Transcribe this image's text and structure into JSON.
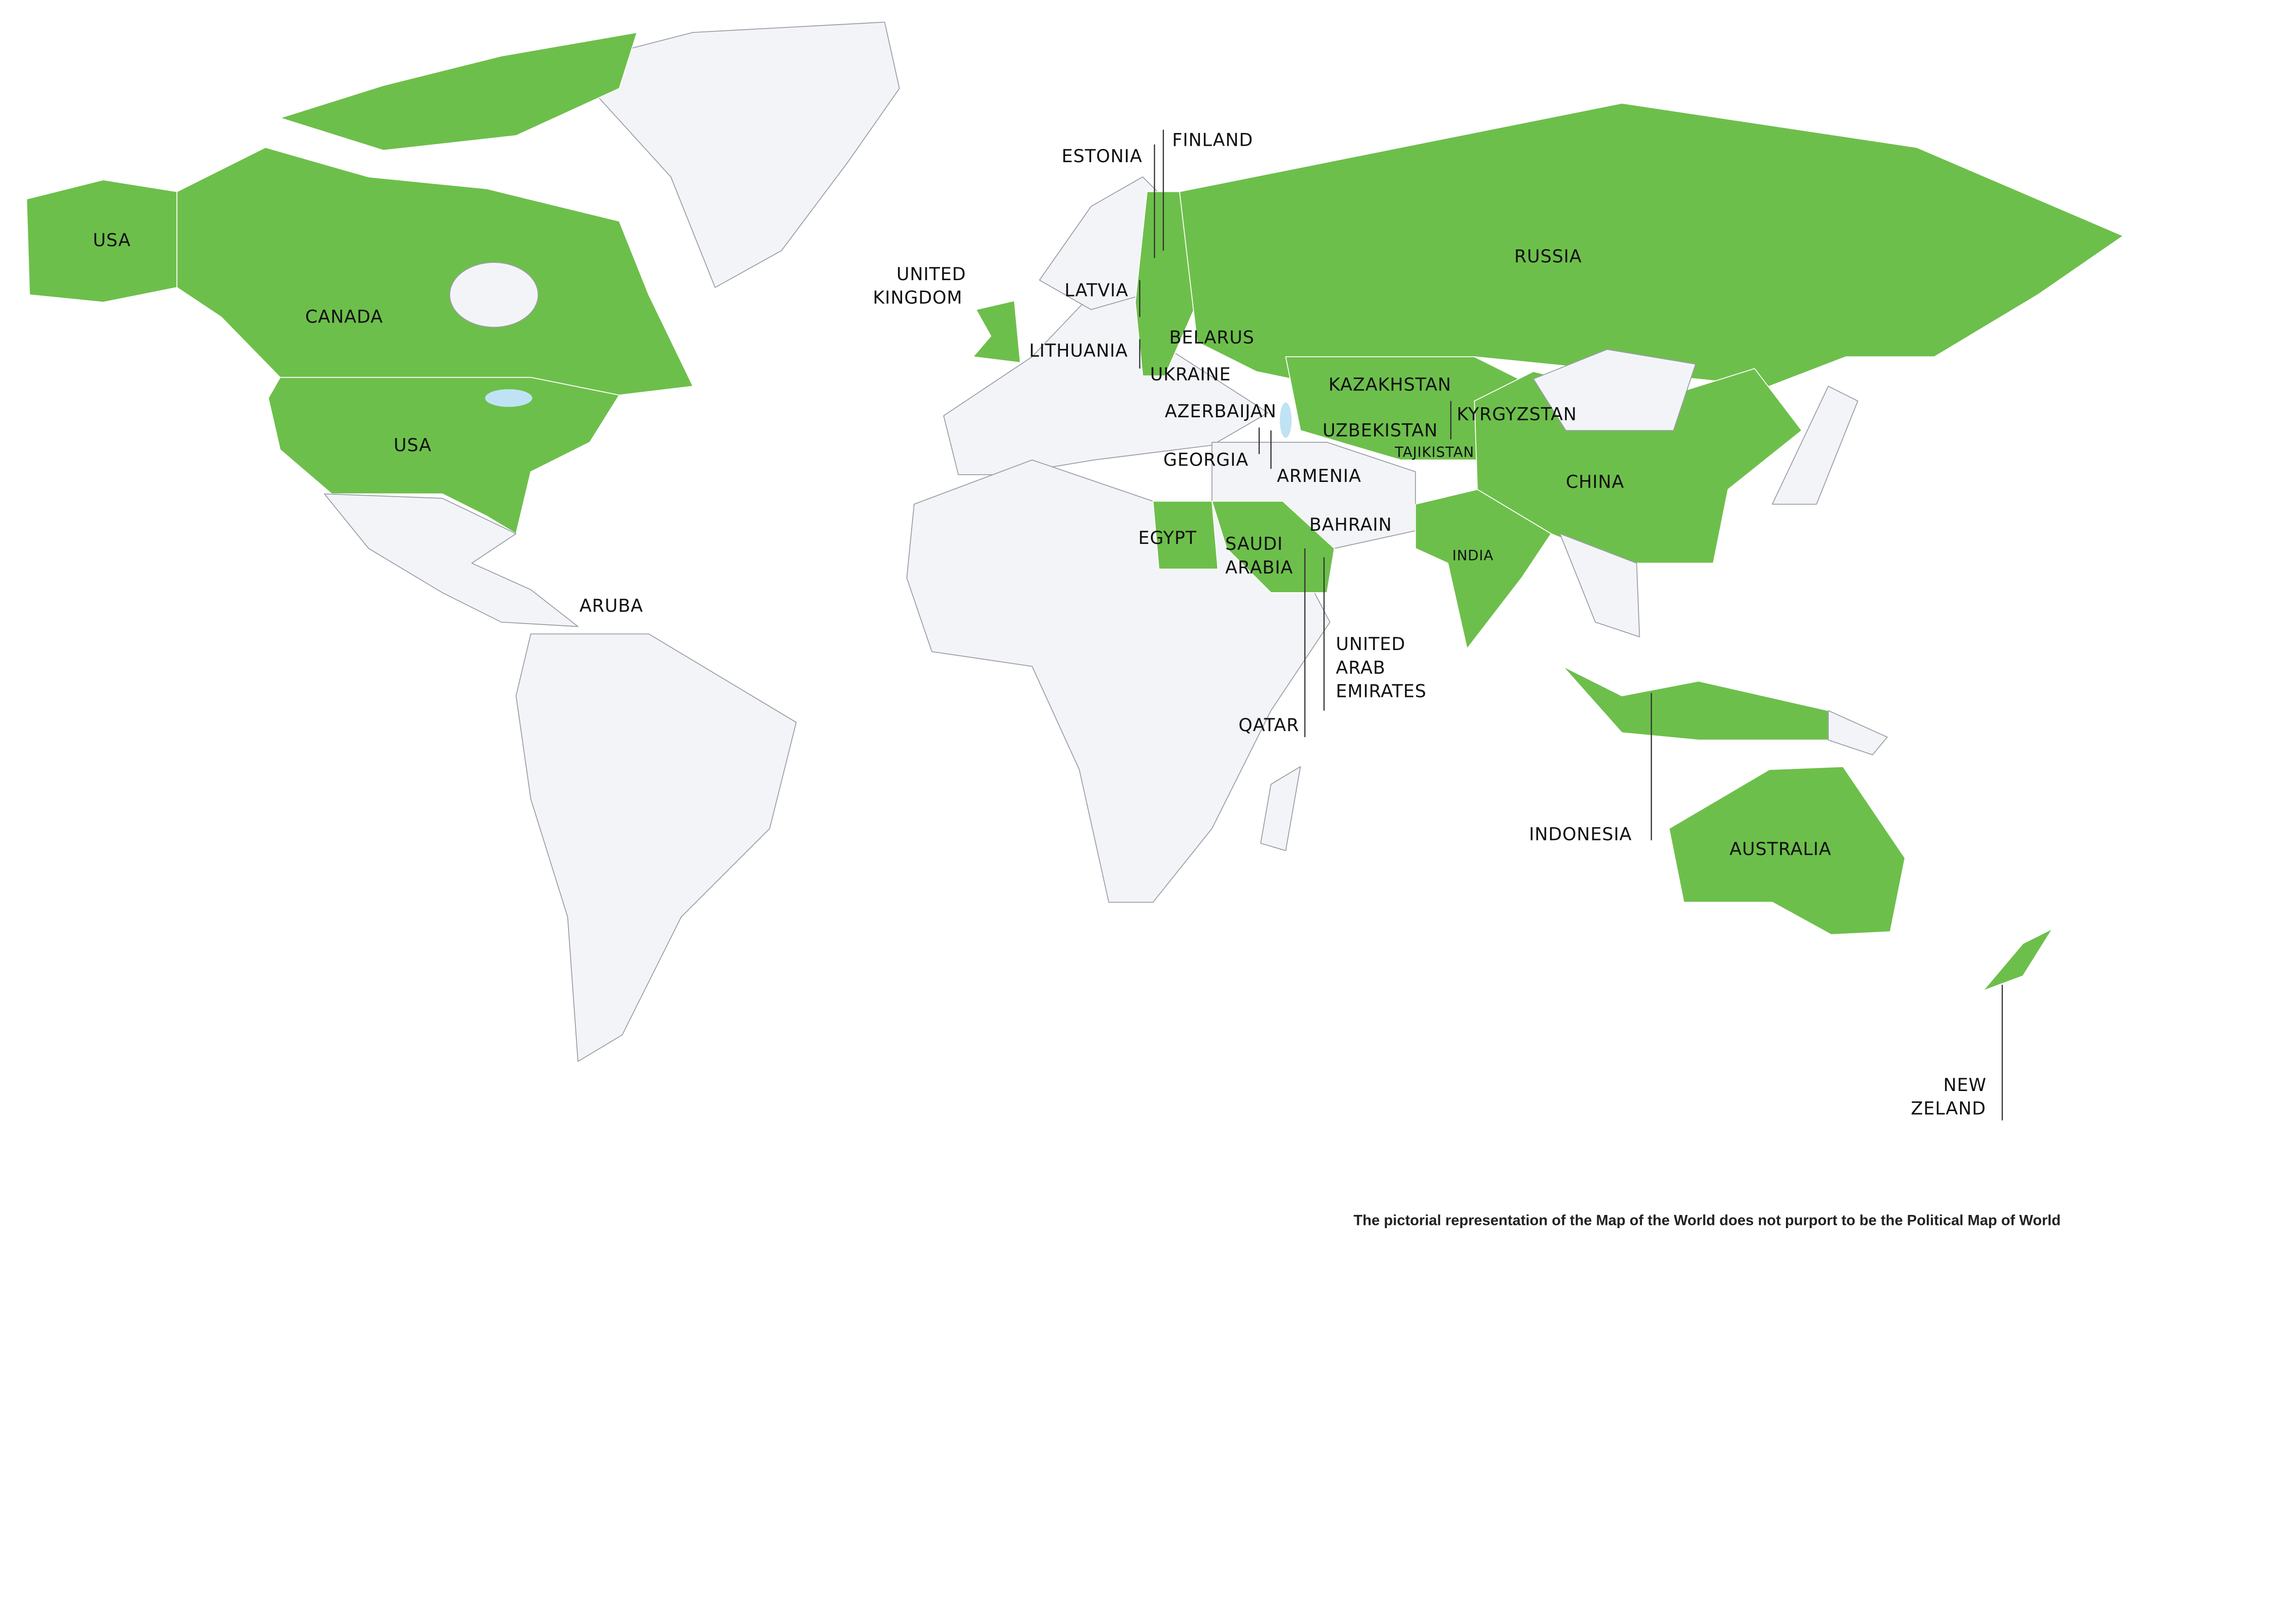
{
  "map": {
    "type": "world-political",
    "colors": {
      "highlighted": "#6dbf4b",
      "other_land": "#f3f4f7",
      "water": "#bfe3f5",
      "background": "#ffffff"
    },
    "highlighted_countries": [
      "USA",
      "Canada",
      "Russia",
      "United Kingdom",
      "Estonia",
      "Finland",
      "Latvia",
      "Lithuania",
      "Belarus",
      "Ukraine",
      "Kazakhstan",
      "Azerbaijan",
      "Uzbekistan",
      "Kyrgyzstan",
      "Tajikistan",
      "Georgia",
      "Armenia",
      "China",
      "Bahrain",
      "India",
      "Egypt",
      "Saudi Arabia",
      "United Arab Emirates",
      "Qatar",
      "Indonesia",
      "Australia",
      "New Zealand"
    ]
  },
  "labels": {
    "usa_alaska": "USA",
    "canada": "CANADA",
    "usa": "USA",
    "uk": [
      "UNITED",
      "KINGDOM"
    ],
    "estonia": "ESTONIA",
    "finland": "FINLAND",
    "latvia": "LATVIA",
    "lithuania": "LITHUANIA",
    "belarus": "BELARUS",
    "ukraine": "UKRAINE",
    "russia": "RUSSIA",
    "kazakhstan": "KAZAKHSTAN",
    "azerbaijan": "AZERBAIJAN",
    "uzbekistan": "UZBEKISTAN",
    "kyrgyzstan": "KYRGYZSTAN",
    "tajikistan": "TAJIKISTAN",
    "georgia": "GEORGIA",
    "armenia": "ARMENIA",
    "china": "CHINA",
    "bahrain": "BAHRAIN",
    "india": "INDIA",
    "egypt": "EGYPT",
    "saudi": [
      "SAUDI",
      "ARABIA"
    ],
    "aruba": "ARUBA",
    "uae": [
      "UNITED",
      "ARAB",
      "EMIRATES"
    ],
    "qatar": "QATAR",
    "indonesia": "INDONESIA",
    "australia": "AUSTRALIA",
    "nz": [
      "NEW",
      "ZELAND"
    ]
  },
  "disclaimer": "The pictorial representation of the Map of the World does not purport to be the Political Map of World"
}
